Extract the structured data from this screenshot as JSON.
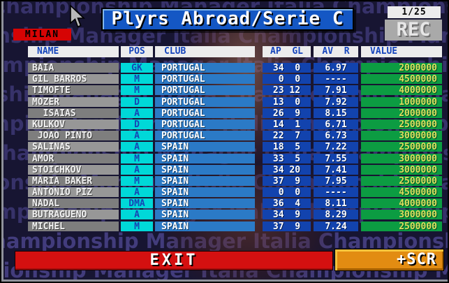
{
  "header": {
    "title": "Plyrs Abroad/Serie C",
    "team": "MILAN",
    "page_indicator": "1/25",
    "rec_label": "REC"
  },
  "background": {
    "watermark_text": "Championship Manager Italia"
  },
  "table": {
    "columns": {
      "name": "NAME",
      "pos": "POS",
      "club": "CLUB",
      "ap_gl": "AP  GL",
      "av_r": "AV  R",
      "value": "VALUE"
    },
    "rows": [
      {
        "name": "BAIA",
        "pos": "GK",
        "club": "PORTUGAL",
        "ap_gl": "34  0",
        "av_r": "6.97",
        "value": "2000000"
      },
      {
        "name": "GIL BARROS",
        "pos": "M",
        "club": "PORTUGAL",
        "ap_gl": " 0  0",
        "av_r": "----",
        "value": "4500000"
      },
      {
        "name": "TIMOFTE",
        "pos": "M",
        "club": "PORTUGAL",
        "ap_gl": "23 12",
        "av_r": "7.91",
        "value": "4000000"
      },
      {
        "name": "MOZER",
        "pos": "D",
        "club": "PORTUGAL",
        "ap_gl": "13  0",
        "av_r": "7.92",
        "value": "1000000"
      },
      {
        "name": "  ISAIAS",
        "pos": "A",
        "club": "PORTUGAL",
        "ap_gl": "26  9",
        "av_r": "8.15",
        "value": "2000000"
      },
      {
        "name": "KULKOV",
        "pos": "D",
        "club": "PORTUGAL",
        "ap_gl": "14  1",
        "av_r": "6.71",
        "value": "2500000"
      },
      {
        "name": " JOAO PINTO",
        "pos": "A",
        "club": "PORTUGAL",
        "ap_gl": "22  7",
        "av_r": "6.73",
        "value": "3000000"
      },
      {
        "name": "SALINAS",
        "pos": "A",
        "club": "SPAIN",
        "ap_gl": "18  5",
        "av_r": "7.22",
        "value": "2500000"
      },
      {
        "name": "AMOR",
        "pos": "M",
        "club": "SPAIN",
        "ap_gl": "33  5",
        "av_r": "7.55",
        "value": "3000000"
      },
      {
        "name": "STOICHKOV",
        "pos": "A",
        "club": "SPAIN",
        "ap_gl": "34 20",
        "av_r": "7.41",
        "value": "3000000"
      },
      {
        "name": "MARIA BAKER",
        "pos": "M",
        "club": "SPAIN",
        "ap_gl": "37  9",
        "av_r": "7.95",
        "value": "2500000"
      },
      {
        "name": "ANTONIO PIZ",
        "pos": "A",
        "club": "SPAIN",
        "ap_gl": " 0  0",
        "av_r": "----",
        "value": "4500000"
      },
      {
        "name": "NADAL",
        "pos": "DMA",
        "club": "SPAIN",
        "ap_gl": "36  4",
        "av_r": "8.11",
        "value": "4000000"
      },
      {
        "name": "BUTRAGUENO",
        "pos": "A",
        "club": "SPAIN",
        "ap_gl": "34  9",
        "av_r": "8.29",
        "value": "3000000"
      },
      {
        "name": "MICHEL",
        "pos": "M",
        "club": "SPAIN",
        "ap_gl": "37  9",
        "av_r": "7.24",
        "value": "2500000"
      }
    ]
  },
  "footer": {
    "exit_label": "EXIT",
    "scr_label": "+SCR"
  },
  "colors": {
    "title_blue": "#1457c4",
    "milan_red": "#d60404",
    "pos_cyan": "#00d8d8",
    "club_blue": "#2b7ac6",
    "stat_blue": "#1243ae",
    "value_green": "#0c9c42",
    "value_yellow": "#dce05e",
    "exit_red": "#d41010",
    "scr_orange": "#e28c12",
    "header_text_blue": "#1444bc"
  }
}
